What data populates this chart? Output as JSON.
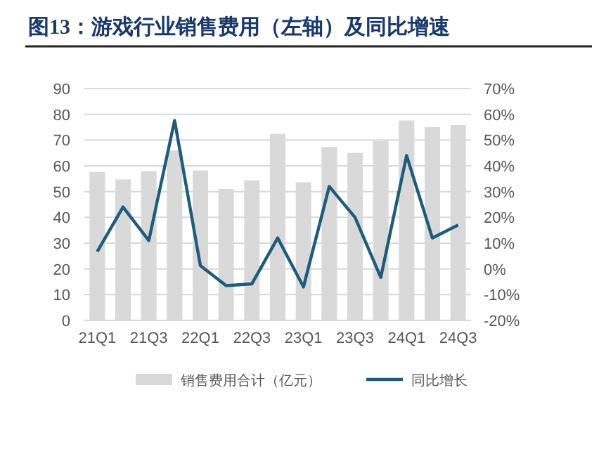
{
  "chart_data": {
    "type": "bar",
    "title": "图13：游戏行业销售费用（左轴）及同比增速",
    "categories": [
      "21Q1",
      null,
      "21Q3",
      null,
      "22Q1",
      null,
      "22Q3",
      null,
      "23Q1",
      null,
      "23Q3",
      null,
      "24Q1",
      null,
      "24Q3"
    ],
    "series": [
      {
        "name": "销售费用合计（亿元）",
        "color": "#d9d9d9",
        "values": [
          57.6,
          54.7,
          58,
          66,
          58.2,
          51,
          54.4,
          72.4,
          53.6,
          67.3,
          65,
          69.6,
          77.6,
          75,
          75.8
        ]
      },
      {
        "name": "同比增长",
        "type": "line",
        "axis": "y2",
        "color": "#1f5b7a",
        "values": [
          6.7,
          24,
          11,
          57.6,
          1.3,
          -6.5,
          -5.8,
          12,
          -7,
          32,
          20,
          -3.3,
          44,
          12,
          17
        ]
      }
    ],
    "ylim": [
      0,
      90
    ],
    "yticks": [
      0,
      10,
      20,
      30,
      40,
      50,
      60,
      70,
      80,
      90
    ],
    "y2lim": [
      -20,
      70
    ],
    "y2ticks": [
      {
        "value": -20,
        "label": "-20%"
      },
      {
        "value": -10,
        "label": "-10%"
      },
      {
        "value": 0,
        "label": "0%"
      },
      {
        "value": 10,
        "label": "10%"
      },
      {
        "value": 20,
        "label": "20%"
      },
      {
        "value": 30,
        "label": "30%"
      },
      {
        "value": 40,
        "label": "40%"
      },
      {
        "value": 50,
        "label": "50%"
      },
      {
        "value": 60,
        "label": "60%"
      },
      {
        "value": 70,
        "label": "70%"
      }
    ],
    "grid": "y",
    "legend": "bottom"
  }
}
